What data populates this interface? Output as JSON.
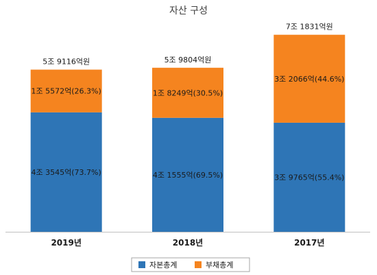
{
  "chart_data": {
    "type": "bar",
    "stacked": true,
    "title": "자산 구성",
    "categories": [
      "2019년",
      "2018년",
      "2017년"
    ],
    "totals": [
      5.9116,
      5.9804,
      7.1831
    ],
    "total_labels": [
      "5조 9116억원",
      "5조 9804억원",
      "7조 1831억원"
    ],
    "series": [
      {
        "name": "자본총계",
        "color": "#2e75b6",
        "values": [
          4.3545,
          4.1555,
          3.9765
        ],
        "labels": [
          "4조 3545억(73.7%)",
          "4조 1555억(69.5%)",
          "3조 9765억(55.4%)"
        ]
      },
      {
        "name": "부채총계",
        "color": "#f5841f",
        "values": [
          1.5572,
          1.8249,
          3.2066
        ],
        "labels": [
          "1조 5572억(26.3%)",
          "1조 8249억(30.5%)",
          "3조 2066억(44.6%)"
        ]
      }
    ],
    "ylim": [
      0,
      7.6
    ],
    "grid": false,
    "legend_position": "bottom"
  }
}
